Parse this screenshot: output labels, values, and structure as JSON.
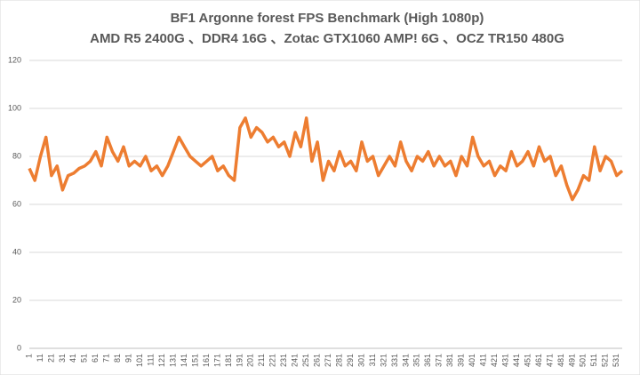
{
  "chart_data": {
    "type": "line",
    "title": "BF1 Argonne forest FPS Benchmark (High 1080p)",
    "subtitle": "AMD R5 2400G 、DDR4 16G 、Zotac GTX1060 AMP! 6G 、OCZ TR150 480G",
    "x": [
      1,
      6,
      11,
      16,
      21,
      26,
      31,
      36,
      41,
      46,
      51,
      56,
      61,
      66,
      71,
      76,
      81,
      86,
      91,
      96,
      101,
      106,
      111,
      116,
      121,
      126,
      131,
      136,
      141,
      146,
      151,
      156,
      161,
      166,
      171,
      176,
      181,
      186,
      191,
      196,
      201,
      206,
      211,
      216,
      221,
      226,
      231,
      236,
      241,
      246,
      251,
      256,
      261,
      266,
      271,
      276,
      281,
      286,
      291,
      296,
      301,
      306,
      311,
      316,
      321,
      326,
      331,
      336,
      341,
      346,
      351,
      356,
      361,
      366,
      371,
      376,
      381,
      386,
      391,
      396,
      401,
      406,
      411,
      416,
      421,
      426,
      431,
      436,
      441,
      446,
      451,
      456,
      461,
      466,
      471,
      476,
      481,
      486,
      491,
      496,
      501,
      506,
      511,
      516,
      521,
      526,
      531,
      536
    ],
    "series": [
      {
        "name": "FPS",
        "color": "#ed7d31",
        "values": [
          75,
          70,
          80,
          88,
          72,
          76,
          66,
          72,
          73,
          75,
          76,
          78,
          82,
          76,
          88,
          82,
          78,
          84,
          76,
          78,
          76,
          80,
          74,
          76,
          72,
          76,
          82,
          88,
          84,
          80,
          78,
          76,
          78,
          80,
          74,
          76,
          72,
          70,
          92,
          96,
          88,
          92,
          90,
          86,
          88,
          84,
          86,
          80,
          90,
          84,
          96,
          78,
          86,
          70,
          78,
          74,
          82,
          76,
          78,
          74,
          86,
          78,
          80,
          72,
          76,
          80,
          76,
          86,
          78,
          74,
          80,
          78,
          82,
          76,
          80,
          76,
          78,
          72,
          80,
          76,
          88,
          80,
          76,
          78,
          72,
          76,
          74,
          82,
          76,
          78,
          82,
          76,
          84,
          78,
          80,
          72,
          76,
          68,
          62,
          66,
          72,
          70,
          84,
          74,
          80,
          78,
          72,
          74
        ]
      }
    ],
    "xlim": [
      1,
      536
    ],
    "xticks": [
      1,
      11,
      21,
      31,
      41,
      51,
      61,
      71,
      81,
      91,
      101,
      111,
      121,
      131,
      141,
      151,
      161,
      171,
      181,
      191,
      201,
      211,
      221,
      231,
      241,
      251,
      261,
      271,
      281,
      291,
      301,
      311,
      321,
      331,
      341,
      351,
      361,
      371,
      381,
      391,
      401,
      411,
      421,
      431,
      441,
      451,
      461,
      471,
      481,
      491,
      501,
      511,
      521,
      531
    ],
    "ylim": [
      0,
      120
    ],
    "yticks": [
      0,
      20,
      40,
      60,
      80,
      100,
      120
    ],
    "grid": true
  }
}
